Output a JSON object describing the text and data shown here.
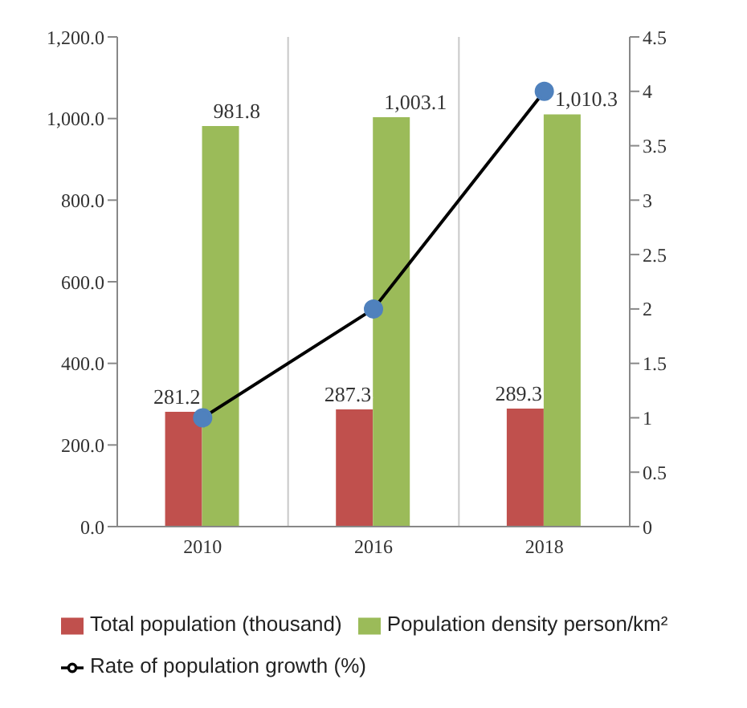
{
  "chart_data": {
    "type": "bar",
    "categories": [
      "2010",
      "2016",
      "2018"
    ],
    "series": [
      {
        "name": "Total  population (thousand)",
        "color": "#c0504d",
        "values": [
          281.2,
          287.3,
          289.3
        ],
        "value_labels": [
          "281.2",
          "287.3",
          "289.3"
        ]
      },
      {
        "name": "Population density person/km²",
        "color": "#9bbb59",
        "values": [
          981.8,
          1003.1,
          1010.3
        ],
        "value_labels": [
          "981.8",
          "1,003.1",
          "1,010.3"
        ]
      },
      {
        "name": "Rate of population growth (%)",
        "type": "line",
        "axis": "y2",
        "color": "#000000",
        "values": [
          1,
          2,
          4
        ]
      }
    ],
    "ylim": [
      0,
      1200
    ],
    "yticks": [
      {
        "value": 0,
        "label": "0.0"
      },
      {
        "value": 200,
        "label": "200.0"
      },
      {
        "value": 400,
        "label": "400.0"
      },
      {
        "value": 600,
        "label": "600.0"
      },
      {
        "value": 800,
        "label": "800.0"
      },
      {
        "value": 1000,
        "label": "1,000.0"
      },
      {
        "value": 1200,
        "label": "1,200.0"
      }
    ],
    "y2lim": [
      0,
      4.5
    ],
    "y2ticks": [
      0,
      0.5,
      1,
      1.5,
      2,
      2.5,
      3,
      3.5,
      4,
      4.5
    ],
    "grid": "x",
    "legend": "bottom",
    "marker": "circle"
  }
}
